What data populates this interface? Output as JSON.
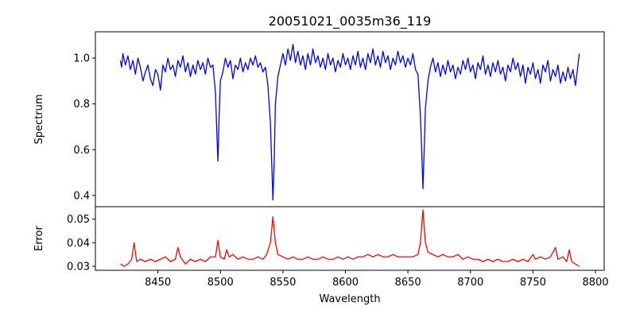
{
  "chart_data": [
    {
      "type": "line",
      "title": "20051021_0035m36_119",
      "xlabel": "",
      "ylabel": "Spectrum",
      "xlim": [
        8400,
        8807
      ],
      "ylim": [
        0.351,
        1.115
      ],
      "yticks": [
        0.4,
        0.6,
        0.8,
        1.0
      ],
      "ytick_labels": [
        "0.4",
        "0.6",
        "0.8",
        "1.0"
      ],
      "color": "#0000ff",
      "points": [
        [
          8420,
          0.99
        ],
        [
          8421,
          0.96
        ],
        [
          8422,
          1.02
        ],
        [
          8424,
          0.97
        ],
        [
          8426,
          1.01
        ],
        [
          8428,
          0.95
        ],
        [
          8430,
          0.99
        ],
        [
          8432,
          0.93
        ],
        [
          8434,
          1.0
        ],
        [
          8436,
          0.96
        ],
        [
          8438,
          0.9
        ],
        [
          8440,
          0.94
        ],
        [
          8442,
          0.97
        ],
        [
          8444,
          0.91
        ],
        [
          8446,
          0.88
        ],
        [
          8448,
          0.95
        ],
        [
          8450,
          0.93
        ],
        [
          8452,
          0.86
        ],
        [
          8454,
          0.97
        ],
        [
          8456,
          0.94
        ],
        [
          8458,
          1.0
        ],
        [
          8460,
          0.95
        ],
        [
          8462,
          0.97
        ],
        [
          8464,
          0.92
        ],
        [
          8466,
          0.99
        ],
        [
          8468,
          0.96
        ],
        [
          8470,
          1.01
        ],
        [
          8472,
          0.94
        ],
        [
          8474,
          0.98
        ],
        [
          8476,
          0.92
        ],
        [
          8478,
          0.97
        ],
        [
          8480,
          0.93
        ],
        [
          8482,
          0.99
        ],
        [
          8484,
          0.95
        ],
        [
          8486,
          0.98
        ],
        [
          8488,
          0.93
        ],
        [
          8490,
          1.0
        ],
        [
          8492,
          0.96
        ],
        [
          8494,
          0.97
        ],
        [
          8496,
          0.85
        ],
        [
          8497,
          0.7
        ],
        [
          8498,
          0.55
        ],
        [
          8499,
          0.75
        ],
        [
          8500,
          0.9
        ],
        [
          8502,
          0.94
        ],
        [
          8504,
          1.0
        ],
        [
          8506,
          0.96
        ],
        [
          8508,
          0.99
        ],
        [
          8510,
          0.91
        ],
        [
          8512,
          0.97
        ],
        [
          8514,
          0.95
        ],
        [
          8516,
          1.0
        ],
        [
          8518,
          0.94
        ],
        [
          8520,
          0.98
        ],
        [
          8522,
          0.95
        ],
        [
          8524,
          1.0
        ],
        [
          8526,
          0.97
        ],
        [
          8528,
          1.01
        ],
        [
          8530,
          0.96
        ],
        [
          8532,
          0.98
        ],
        [
          8534,
          0.94
        ],
        [
          8536,
          0.96
        ],
        [
          8538,
          0.88
        ],
        [
          8540,
          0.72
        ],
        [
          8541,
          0.55
        ],
        [
          8542,
          0.38
        ],
        [
          8543,
          0.55
        ],
        [
          8544,
          0.8
        ],
        [
          8546,
          0.92
        ],
        [
          8548,
          0.97
        ],
        [
          8550,
          1.02
        ],
        [
          8552,
          0.97
        ],
        [
          8554,
          1.04
        ],
        [
          8556,
          0.99
        ],
        [
          8558,
          1.06
        ],
        [
          8560,
          0.98
        ],
        [
          8562,
          1.03
        ],
        [
          8564,
          0.97
        ],
        [
          8566,
          1.01
        ],
        [
          8568,
          0.95
        ],
        [
          8570,
          1.02
        ],
        [
          8572,
          0.97
        ],
        [
          8574,
          1.04
        ],
        [
          8576,
          0.98
        ],
        [
          8578,
          1.01
        ],
        [
          8580,
          0.96
        ],
        [
          8582,
          1.0
        ],
        [
          8584,
          0.95
        ],
        [
          8586,
          1.02
        ],
        [
          8588,
          0.97
        ],
        [
          8590,
          1.0
        ],
        [
          8592,
          0.94
        ],
        [
          8594,
          0.99
        ],
        [
          8596,
          0.96
        ],
        [
          8598,
          1.02
        ],
        [
          8600,
          0.97
        ],
        [
          8602,
          1.0
        ],
        [
          8604,
          0.95
        ],
        [
          8606,
          1.01
        ],
        [
          8608,
          0.97
        ],
        [
          8610,
          1.03
        ],
        [
          8612,
          0.96
        ],
        [
          8614,
          1.0
        ],
        [
          8616,
          0.95
        ],
        [
          8618,
          1.02
        ],
        [
          8620,
          0.98
        ],
        [
          8622,
          1.04
        ],
        [
          8624,
          0.97
        ],
        [
          8626,
          1.01
        ],
        [
          8628,
          0.96
        ],
        [
          8630,
          1.03
        ],
        [
          8632,
          0.98
        ],
        [
          8634,
          1.01
        ],
        [
          8636,
          0.95
        ],
        [
          8638,
          1.0
        ],
        [
          8640,
          0.97
        ],
        [
          8642,
          1.03
        ],
        [
          8644,
          0.98
        ],
        [
          8646,
          1.01
        ],
        [
          8648,
          0.96
        ],
        [
          8650,
          1.0
        ],
        [
          8652,
          0.97
        ],
        [
          8654,
          1.02
        ],
        [
          8656,
          0.95
        ],
        [
          8658,
          0.93
        ],
        [
          8660,
          0.75
        ],
        [
          8661,
          0.6
        ],
        [
          8662,
          0.43
        ],
        [
          8663,
          0.6
        ],
        [
          8664,
          0.78
        ],
        [
          8666,
          0.9
        ],
        [
          8668,
          0.96
        ],
        [
          8670,
          1.0
        ],
        [
          8672,
          0.94
        ],
        [
          8674,
          0.98
        ],
        [
          8676,
          0.92
        ],
        [
          8678,
          0.97
        ],
        [
          8680,
          0.93
        ],
        [
          8682,
          0.99
        ],
        [
          8684,
          0.94
        ],
        [
          8686,
          0.97
        ],
        [
          8688,
          0.91
        ],
        [
          8690,
          0.96
        ],
        [
          8692,
          0.93
        ],
        [
          8694,
          0.99
        ],
        [
          8696,
          0.95
        ],
        [
          8698,
          1.0
        ],
        [
          8700,
          0.94
        ],
        [
          8702,
          0.97
        ],
        [
          8704,
          0.91
        ],
        [
          8706,
          0.98
        ],
        [
          8708,
          0.95
        ],
        [
          8710,
          1.01
        ],
        [
          8712,
          0.93
        ],
        [
          8714,
          0.97
        ],
        [
          8716,
          0.92
        ],
        [
          8718,
          0.98
        ],
        [
          8720,
          0.94
        ],
        [
          8722,
          0.99
        ],
        [
          8724,
          0.93
        ],
        [
          8726,
          0.96
        ],
        [
          8728,
          0.9
        ],
        [
          8730,
          0.97
        ],
        [
          8732,
          0.94
        ],
        [
          8734,
          1.0
        ],
        [
          8736,
          0.95
        ],
        [
          8738,
          0.98
        ],
        [
          8740,
          0.92
        ],
        [
          8742,
          0.97
        ],
        [
          8744,
          0.89
        ],
        [
          8746,
          0.96
        ],
        [
          8748,
          0.93
        ],
        [
          8750,
          0.98
        ],
        [
          8752,
          0.91
        ],
        [
          8754,
          0.95
        ],
        [
          8756,
          0.89
        ],
        [
          8758,
          0.97
        ],
        [
          8760,
          0.94
        ],
        [
          8762,
          0.99
        ],
        [
          8764,
          0.9
        ],
        [
          8766,
          0.95
        ],
        [
          8768,
          0.92
        ],
        [
          8770,
          0.97
        ],
        [
          8772,
          0.89
        ],
        [
          8774,
          0.94
        ],
        [
          8776,
          0.9
        ],
        [
          8778,
          0.96
        ],
        [
          8780,
          0.91
        ],
        [
          8782,
          0.95
        ],
        [
          8784,
          0.88
        ],
        [
          8786,
          0.97
        ],
        [
          8787,
          1.02
        ]
      ]
    },
    {
      "type": "line",
      "title": "",
      "xlabel": "Wavelength",
      "ylabel": "Error",
      "xlim": [
        8400,
        8807
      ],
      "ylim": [
        0.0283,
        0.0553
      ],
      "xticks": [
        8450,
        8500,
        8550,
        8600,
        8650,
        8700,
        8750,
        8800
      ],
      "xtick_labels": [
        "8450",
        "8500",
        "8550",
        "8600",
        "8650",
        "8700",
        "8750",
        "8800"
      ],
      "yticks": [
        0.03,
        0.04,
        0.05
      ],
      "ytick_labels": [
        "0.03",
        "0.04",
        "0.05"
      ],
      "color": "#ff0000",
      "points": [
        [
          8420,
          0.031
        ],
        [
          8423,
          0.03
        ],
        [
          8426,
          0.031
        ],
        [
          8429,
          0.033
        ],
        [
          8431,
          0.04
        ],
        [
          8433,
          0.032
        ],
        [
          8436,
          0.033
        ],
        [
          8440,
          0.032
        ],
        [
          8444,
          0.033
        ],
        [
          8448,
          0.032
        ],
        [
          8452,
          0.033
        ],
        [
          8456,
          0.034
        ],
        [
          8460,
          0.032
        ],
        [
          8464,
          0.033
        ],
        [
          8466,
          0.038
        ],
        [
          8468,
          0.034
        ],
        [
          8472,
          0.031
        ],
        [
          8476,
          0.033
        ],
        [
          8480,
          0.032
        ],
        [
          8484,
          0.033
        ],
        [
          8488,
          0.032
        ],
        [
          8492,
          0.034
        ],
        [
          8496,
          0.034
        ],
        [
          8498,
          0.041
        ],
        [
          8500,
          0.034
        ],
        [
          8503,
          0.033
        ],
        [
          8505,
          0.037
        ],
        [
          8507,
          0.034
        ],
        [
          8510,
          0.035
        ],
        [
          8514,
          0.033
        ],
        [
          8518,
          0.034
        ],
        [
          8522,
          0.033
        ],
        [
          8526,
          0.033
        ],
        [
          8530,
          0.034
        ],
        [
          8534,
          0.033
        ],
        [
          8537,
          0.035
        ],
        [
          8540,
          0.04
        ],
        [
          8542,
          0.051
        ],
        [
          8544,
          0.04
        ],
        [
          8546,
          0.035
        ],
        [
          8550,
          0.034
        ],
        [
          8554,
          0.033
        ],
        [
          8558,
          0.034
        ],
        [
          8562,
          0.033
        ],
        [
          8566,
          0.033
        ],
        [
          8570,
          0.034
        ],
        [
          8574,
          0.033
        ],
        [
          8578,
          0.033
        ],
        [
          8582,
          0.034
        ],
        [
          8586,
          0.033
        ],
        [
          8590,
          0.033
        ],
        [
          8594,
          0.034
        ],
        [
          8598,
          0.033
        ],
        [
          8602,
          0.034
        ],
        [
          8606,
          0.033
        ],
        [
          8610,
          0.034
        ],
        [
          8614,
          0.034
        ],
        [
          8618,
          0.035
        ],
        [
          8622,
          0.034
        ],
        [
          8626,
          0.035
        ],
        [
          8630,
          0.034
        ],
        [
          8634,
          0.034
        ],
        [
          8638,
          0.035
        ],
        [
          8642,
          0.034
        ],
        [
          8646,
          0.034
        ],
        [
          8650,
          0.034
        ],
        [
          8654,
          0.034
        ],
        [
          8658,
          0.035
        ],
        [
          8660,
          0.04
        ],
        [
          8662,
          0.054
        ],
        [
          8664,
          0.04
        ],
        [
          8666,
          0.036
        ],
        [
          8670,
          0.035
        ],
        [
          8674,
          0.034
        ],
        [
          8678,
          0.035
        ],
        [
          8682,
          0.034
        ],
        [
          8686,
          0.034
        ],
        [
          8690,
          0.035
        ],
        [
          8694,
          0.033
        ],
        [
          8698,
          0.034
        ],
        [
          8702,
          0.033
        ],
        [
          8706,
          0.033
        ],
        [
          8710,
          0.032
        ],
        [
          8714,
          0.033
        ],
        [
          8718,
          0.032
        ],
        [
          8722,
          0.033
        ],
        [
          8726,
          0.032
        ],
        [
          8730,
          0.032
        ],
        [
          8734,
          0.033
        ],
        [
          8738,
          0.032
        ],
        [
          8742,
          0.033
        ],
        [
          8746,
          0.032
        ],
        [
          8750,
          0.035
        ],
        [
          8752,
          0.033
        ],
        [
          8756,
          0.034
        ],
        [
          8760,
          0.033
        ],
        [
          8764,
          0.034
        ],
        [
          8768,
          0.038
        ],
        [
          8770,
          0.033
        ],
        [
          8774,
          0.034
        ],
        [
          8777,
          0.032
        ],
        [
          8779,
          0.037
        ],
        [
          8781,
          0.032
        ],
        [
          8784,
          0.031
        ],
        [
          8787,
          0.03
        ]
      ]
    }
  ]
}
